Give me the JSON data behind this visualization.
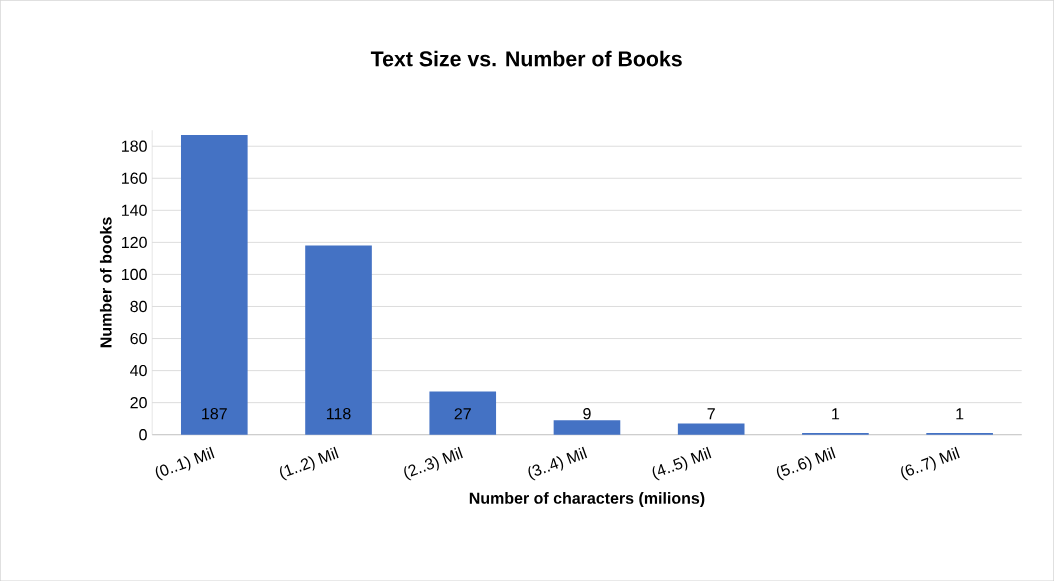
{
  "chart_data": {
    "type": "bar",
    "title": "Text Size vs. Number of Books",
    "xlabel": "Number of characters (milions)",
    "ylabel": "Number of books",
    "categories": [
      "(0..1) Mil",
      "(1..2) Mil",
      "(2..3) Mil",
      "(3..4) Mil",
      "(4..5) Mil",
      "(5..6) Mil",
      "(6..7) Mil"
    ],
    "values": [
      187,
      118,
      27,
      9,
      7,
      1,
      1
    ],
    "color": "#4472c4",
    "ylim": [
      0,
      190
    ],
    "yticks": [
      0,
      20,
      40,
      60,
      80,
      100,
      120,
      140,
      160,
      180
    ],
    "grid": "y",
    "data_labels": true
  }
}
